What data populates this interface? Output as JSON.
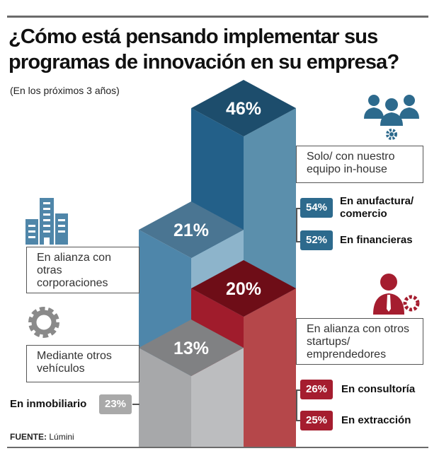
{
  "title": "¿Cómo está pensando implementar sus programas de innovación en su empresa?",
  "subtitle": "(En los próximos 3 años)",
  "source_label": "FUENTE:",
  "source_value": "Lúmini",
  "colors": {
    "blue": "#2d6a8d",
    "red": "#a51d2f",
    "gray": "#a9a9a9"
  },
  "chart_data": {
    "type": "bar",
    "style": "isometric 3D columns",
    "title": "¿Cómo está pensando implementar sus programas de innovación en su empresa?",
    "subtitle": "(En los próximos 3 años)",
    "unit": "%",
    "categories": [
      "Solo/ con nuestro equipo in-house",
      "En alianza con otras corporaciones",
      "En alianza con otros startups/ emprendedores",
      "Mediante otros vehículos"
    ],
    "values": [
      46,
      21,
      20,
      13
    ],
    "value_labels": [
      "46%",
      "21%",
      "20%",
      "13%"
    ],
    "bar_colors": [
      "#2d6a8d",
      "#4f86a9",
      "#a51d2f",
      "#a7a8aa"
    ],
    "icons": [
      "team-gear-icon",
      "buildings-icon",
      "businessman-gear-icon",
      "gear-icon"
    ],
    "breakdowns": [
      {
        "category": "Solo/ con nuestro equipo in-house",
        "items": [
          {
            "label": "En anufactura/ comercio",
            "value": 54,
            "text": "54%"
          },
          {
            "label": "En financieras",
            "value": 52,
            "text": "52%"
          }
        ]
      },
      {
        "category": "Mediante otros vehículos",
        "items": [
          {
            "label": "En inmobiliario",
            "value": 23,
            "text": "23%"
          }
        ]
      },
      {
        "category": "En alianza con otros startups/ emprendedores",
        "items": [
          {
            "label": "En consultoría",
            "value": 26,
            "text": "26%"
          },
          {
            "label": "En extracción",
            "value": 25,
            "text": "25%"
          }
        ]
      }
    ],
    "axes": "none",
    "grid": false,
    "legend": "none"
  }
}
